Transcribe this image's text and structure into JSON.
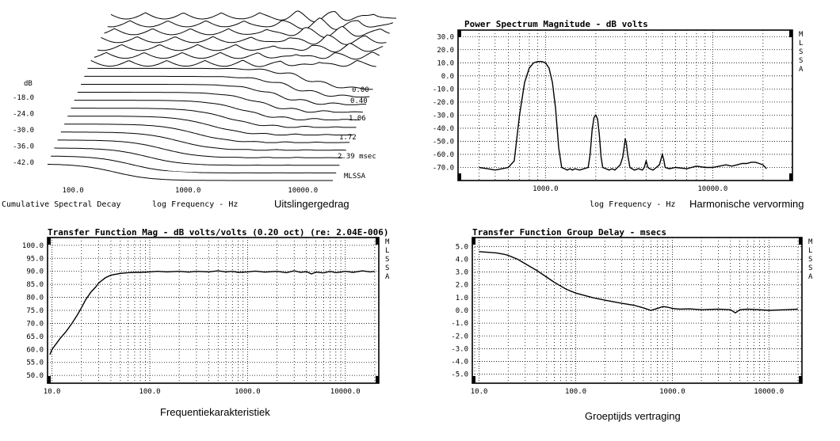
{
  "captions": {
    "csd": "Uitslingergedrag",
    "harm": "Harmonische vervorming",
    "mag": "Frequentiekarakteristiek",
    "gd": "Groeptijds vertraging"
  },
  "chart_data": [
    {
      "id": "csd",
      "type": "line",
      "title": "",
      "xlabel": "log Frequency - Hz",
      "bottom_left_label": "Cumulative Spectral Decay",
      "ylabel": "dB",
      "x_scale": "log",
      "xlim": [
        60,
        25000
      ],
      "x_ticks": [
        {
          "v": 100,
          "label": "100.0"
        },
        {
          "v": 1000,
          "label": "1000.0"
        },
        {
          "v": 10000,
          "label": "10000.0"
        }
      ],
      "ylim": [
        -45,
        -12
      ],
      "y_ticks": [
        {
          "v": -18,
          "label": "-18.0"
        },
        {
          "v": -24,
          "label": "-24.0"
        },
        {
          "v": -30,
          "label": "-30.0"
        },
        {
          "v": -36,
          "label": "-36.0"
        },
        {
          "v": -42,
          "label": "-42.0"
        }
      ],
      "time_labels": [
        "0.00",
        "0.40",
        "1.06",
        "1.72",
        "2.39 msec"
      ],
      "vendor_tag": "MLSSA",
      "slice_count": 20
    },
    {
      "id": "harm",
      "type": "line",
      "title": "Power Spectrum Magnitude - dB volts",
      "xlabel": "log Frequency - Hz",
      "x_scale": "log",
      "xlim": [
        300,
        30000
      ],
      "x_ticks": [
        {
          "v": 1000,
          "label": "1000.0"
        },
        {
          "v": 10000,
          "label": "10000.0"
        }
      ],
      "ylim": [
        -80,
        35
      ],
      "y_ticks": [
        {
          "v": 30,
          "label": "30.0"
        },
        {
          "v": 20,
          "label": "20.0"
        },
        {
          "v": 10,
          "label": "10.0"
        },
        {
          "v": 0,
          "label": "0.0"
        },
        {
          "v": -10,
          "label": "-10.0"
        },
        {
          "v": -20,
          "label": "-20.0"
        },
        {
          "v": -30,
          "label": "-30.0"
        },
        {
          "v": -40,
          "label": "-40.0"
        },
        {
          "v": -50,
          "label": "-50.0"
        },
        {
          "v": -60,
          "label": "-60.0"
        },
        {
          "v": -70,
          "label": "-70.0"
        }
      ],
      "grid": true,
      "vendor_tag": "MLSSA",
      "series": [
        {
          "x": [
            400,
            450,
            500,
            550,
            600,
            650,
            700,
            750,
            800,
            850,
            900,
            950,
            1000,
            1050,
            1100,
            1150,
            1200,
            1250,
            1300,
            1350,
            1400,
            1450,
            1500,
            1600,
            1700,
            1800,
            1850,
            1900,
            1950,
            2000,
            2050,
            2100,
            2150,
            2200,
            2300,
            2400,
            2500,
            2600,
            2700,
            2800,
            2900,
            2950,
            3000,
            3050,
            3100,
            3200,
            3400,
            3600,
            3800,
            3900,
            4000,
            4100,
            4200,
            4400,
            4600,
            4800,
            4900,
            5000,
            5100,
            5200,
            5500,
            6000,
            7000,
            8000,
            9000,
            10000,
            11000,
            12000,
            13000,
            14000,
            15000,
            16000,
            17000,
            18000,
            19000,
            20000,
            21000
          ],
          "y": [
            -70,
            -71,
            -72,
            -71,
            -70,
            -65,
            -30,
            -5,
            6,
            10,
            11,
            11,
            10,
            6,
            -5,
            -25,
            -55,
            -70,
            -71,
            -72,
            -71,
            -72,
            -71,
            -72,
            -71,
            -70,
            -60,
            -42,
            -32,
            -30,
            -33,
            -45,
            -62,
            -70,
            -71,
            -72,
            -71,
            -72,
            -70,
            -68,
            -62,
            -55,
            -48,
            -52,
            -60,
            -70,
            -72,
            -71,
            -72,
            -70,
            -65,
            -70,
            -71,
            -72,
            -70,
            -68,
            -64,
            -60,
            -64,
            -70,
            -71,
            -70,
            -71,
            -69,
            -70,
            -70,
            -69,
            -68,
            -69,
            -68,
            -67,
            -67,
            -66,
            -66,
            -67,
            -68,
            -71
          ]
        }
      ]
    },
    {
      "id": "mag",
      "type": "line",
      "title": "Transfer Function Mag - dB volts/volts (0.20 oct) (re: 2.04E-006)",
      "xlabel": "",
      "x_scale": "log",
      "xlim": [
        9,
        22000
      ],
      "x_ticks": [
        {
          "v": 10,
          "label": "10.0"
        },
        {
          "v": 100,
          "label": "100.0"
        },
        {
          "v": 1000,
          "label": "1000.0"
        },
        {
          "v": 10000,
          "label": "10000.0"
        }
      ],
      "ylim": [
        47,
        103
      ],
      "y_ticks": [
        {
          "v": 100,
          "label": "100.0"
        },
        {
          "v": 95,
          "label": "95.0"
        },
        {
          "v": 90,
          "label": "90.0"
        },
        {
          "v": 85,
          "label": "85.0"
        },
        {
          "v": 80,
          "label": "80.0"
        },
        {
          "v": 75,
          "label": "75.0"
        },
        {
          "v": 70,
          "label": "70.0"
        },
        {
          "v": 65,
          "label": "65.0"
        },
        {
          "v": 60,
          "label": "60.0"
        },
        {
          "v": 55,
          "label": "55.0"
        },
        {
          "v": 50,
          "label": "50.0"
        }
      ],
      "grid": true,
      "vendor_tag": "MLSSA",
      "series": [
        {
          "x": [
            9.5,
            10,
            12,
            14,
            16,
            18,
            20,
            22,
            25,
            28,
            30,
            35,
            40,
            50,
            60,
            70,
            80,
            100,
            120,
            150,
            200,
            250,
            300,
            400,
            500,
            600,
            700,
            800,
            1000,
            1200,
            1500,
            2000,
            2500,
            3000,
            3500,
            4000,
            4500,
            5000,
            6000,
            7000,
            8000,
            10000,
            12000,
            15000,
            18000,
            20000
          ],
          "y": [
            58,
            60,
            64,
            67,
            70,
            73,
            76,
            79,
            82,
            84,
            85.5,
            87.5,
            88.5,
            89.2,
            89.5,
            89.6,
            89.6,
            89.8,
            90,
            89.8,
            90,
            89.7,
            90,
            89.8,
            90.2,
            89.8,
            90,
            89.6,
            89.8,
            90.1,
            89.7,
            90,
            89.5,
            90.2,
            89.6,
            89.9,
            89,
            89.7,
            89.4,
            90,
            89.5,
            90,
            89.6,
            90.2,
            89.8,
            90
          ]
        }
      ]
    },
    {
      "id": "gd",
      "type": "line",
      "title": "Transfer Function Group Delay - msecs",
      "xlabel": "",
      "x_scale": "log",
      "xlim": [
        8.5,
        22000
      ],
      "x_ticks": [
        {
          "v": 10,
          "label": "10.0"
        },
        {
          "v": 100,
          "label": "100.0"
        },
        {
          "v": 1000,
          "label": "1000.0"
        },
        {
          "v": 10000,
          "label": "10000.0"
        }
      ],
      "ylim": [
        -5.7,
        5.7
      ],
      "y_ticks": [
        {
          "v": 5,
          "label": "5.0"
        },
        {
          "v": 4,
          "label": "4.0"
        },
        {
          "v": 3,
          "label": "3.0"
        },
        {
          "v": 2,
          "label": "2.0"
        },
        {
          "v": 1,
          "label": "1.0"
        },
        {
          "v": 0,
          "label": "0.0"
        },
        {
          "v": -1,
          "label": "-1.0"
        },
        {
          "v": -2,
          "label": "-2.0"
        },
        {
          "v": -3,
          "label": "-3.0"
        },
        {
          "v": -4,
          "label": "-4.0"
        },
        {
          "v": -5,
          "label": "-5.0"
        }
      ],
      "grid": true,
      "vendor_tag": "MLSSA",
      "series": [
        {
          "x": [
            10,
            12,
            15,
            18,
            20,
            25,
            30,
            40,
            50,
            60,
            70,
            80,
            100,
            150,
            200,
            300,
            400,
            500,
            600,
            700,
            800,
            900,
            1000,
            1200,
            1500,
            2000,
            3000,
            4000,
            4500,
            5000,
            6000,
            8000,
            10000,
            15000,
            20000
          ],
          "y": [
            4.6,
            4.55,
            4.5,
            4.4,
            4.3,
            4.0,
            3.65,
            3.1,
            2.6,
            2.2,
            1.9,
            1.65,
            1.35,
            1.0,
            0.8,
            0.55,
            0.4,
            0.2,
            0.0,
            0.15,
            0.3,
            0.25,
            0.15,
            0.1,
            0.12,
            0.05,
            0.1,
            0.05,
            -0.2,
            0.05,
            0.1,
            0.05,
            0.0,
            0.05,
            0.1
          ]
        }
      ]
    }
  ]
}
